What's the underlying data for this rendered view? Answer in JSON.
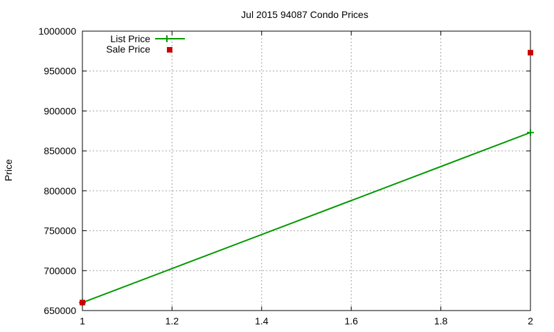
{
  "chart_data": {
    "type": "line",
    "title": "Jul 2015 94087 Condo Prices",
    "xlabel": "",
    "ylabel": "Price",
    "xlim": [
      1,
      2
    ],
    "ylim": [
      650000,
      1000000
    ],
    "x_ticks": [
      "1",
      "1.2",
      "1.4",
      "1.6",
      "1.8",
      "2"
    ],
    "y_ticks": [
      "650000",
      "700000",
      "750000",
      "800000",
      "850000",
      "900000",
      "950000",
      "1000000"
    ],
    "grid": true,
    "legend_position": "top-left",
    "series": [
      {
        "name": "List Price",
        "style": "linespoints",
        "color": "#009900",
        "points": [
          {
            "x": 1,
            "y": 660000
          },
          {
            "x": 2,
            "y": 873000
          }
        ]
      },
      {
        "name": "Sale Price",
        "style": "points",
        "color": "#cc0000",
        "points": [
          {
            "x": 1,
            "y": 660000
          },
          {
            "x": 2,
            "y": 973000
          }
        ]
      }
    ]
  }
}
